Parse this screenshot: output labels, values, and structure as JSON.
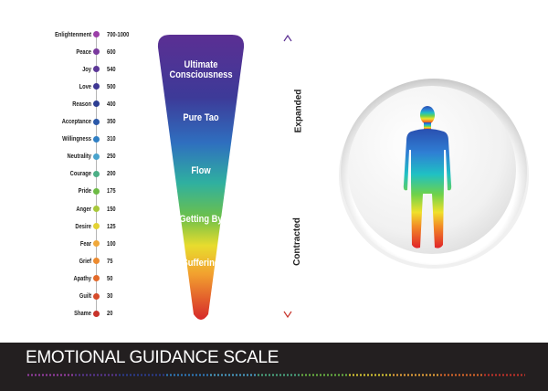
{
  "levels": [
    {
      "label": "Enlightenment",
      "value": "700-1000",
      "color": "#9b3fa8"
    },
    {
      "label": "Peace",
      "value": "600",
      "color": "#7a3a9e"
    },
    {
      "label": "Joy",
      "value": "540",
      "color": "#5c3797"
    },
    {
      "label": "Love",
      "value": "500",
      "color": "#3f3793"
    },
    {
      "label": "Reason",
      "value": "400",
      "color": "#2c3e93"
    },
    {
      "label": "Acceptance",
      "value": "350",
      "color": "#2b58a8"
    },
    {
      "label": "Willingness",
      "value": "310",
      "color": "#2f7fc4"
    },
    {
      "label": "Neutrality",
      "value": "250",
      "color": "#4aa3cc"
    },
    {
      "label": "Courage",
      "value": "200",
      "color": "#4caf86"
    },
    {
      "label": "Pride",
      "value": "175",
      "color": "#6dbb45"
    },
    {
      "label": "Anger",
      "value": "150",
      "color": "#a8c83a"
    },
    {
      "label": "Desire",
      "value": "125",
      "color": "#e3d234"
    },
    {
      "label": "Fear",
      "value": "100",
      "color": "#f0a83a"
    },
    {
      "label": "Grief",
      "value": "75",
      "color": "#ec8a2e"
    },
    {
      "label": "Apathy",
      "value": "50",
      "color": "#e36a2a"
    },
    {
      "label": "Guilt",
      "value": "30",
      "color": "#d64b2a"
    },
    {
      "label": "Shame",
      "value": "20",
      "color": "#c8332a"
    }
  ],
  "funnel": {
    "labels": [
      "Ultimate Consciousness",
      "Pure Tao",
      "Flow",
      "Getting By",
      "Suffering"
    ],
    "top_color": "#5b2f93",
    "bottom_color": "#d6282a"
  },
  "axis": {
    "top_label": "Expanded",
    "bottom_label": "Contracted",
    "line_top_color": "#5b2f93",
    "line_bottom_color": "#c8332a"
  },
  "figure": {
    "icon": "human-silhouette-icon",
    "disc": "white-button-disc"
  },
  "footer": {
    "title": "EMOTIONAL GUIDANCE SCALE",
    "background": "#231f20"
  }
}
